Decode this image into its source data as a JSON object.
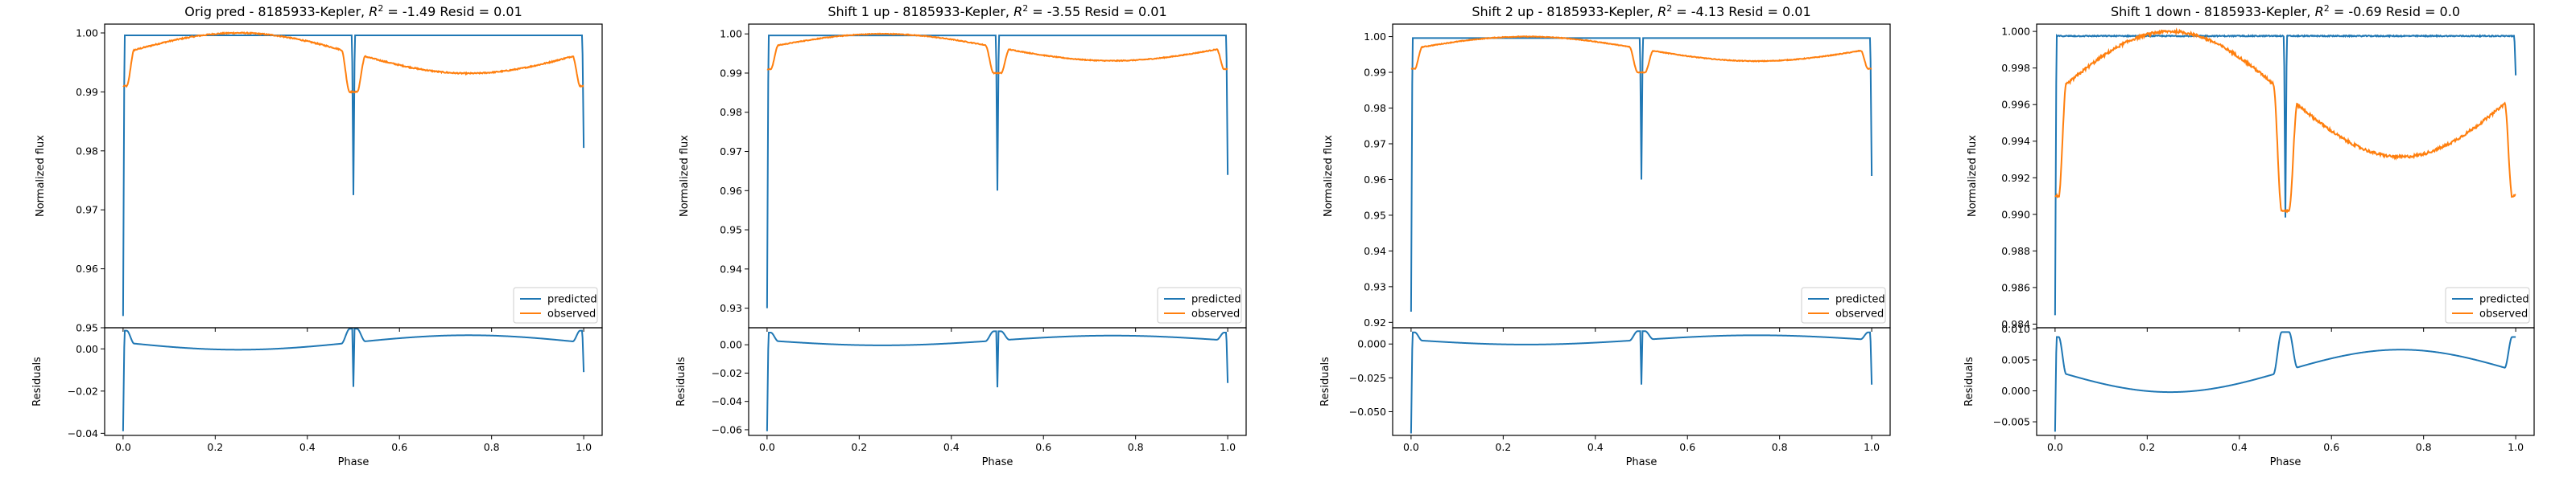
{
  "colors": {
    "predicted": "#1f77b4",
    "observed": "#ff7f0e"
  },
  "chart_data": [
    {
      "type": "line",
      "title_prefix": "Orig pred - 8185933-Kepler, ",
      "r2_value": "-1.49",
      "resid_text": "Resid = 0.01",
      "xlabel": "Phase",
      "ylabel_top": "Normalized flux",
      "ylabel_bottom": "Residuals",
      "xlim": [
        -0.04,
        1.04
      ],
      "xticks": [
        0.0,
        0.2,
        0.4,
        0.6,
        0.8,
        1.0
      ],
      "xtick_labels": [
        "0.0",
        "0.2",
        "0.4",
        "0.6",
        "0.8",
        "1.0"
      ],
      "ylim_top": [
        0.95,
        1.0015
      ],
      "yticks_top": [
        0.95,
        0.96,
        0.97,
        0.98,
        0.99,
        1.0
      ],
      "ytick_labels_top": [
        "0.95",
        "0.96",
        "0.97",
        "0.98",
        "0.99",
        "1.00"
      ],
      "ylim_bottom": [
        -0.041,
        0.01
      ],
      "yticks_bottom": [
        -0.04,
        -0.02,
        0.0
      ],
      "ytick_labels_bottom": [
        "−0.04",
        "−0.02",
        "0.00"
      ],
      "predicted": {
        "baseline": 0.9996,
        "edge_start": 0.952,
        "eclipse": 0.9725,
        "edge_end": 0.9805
      },
      "observed": {
        "edge": 0.991,
        "near_edge": 0.997,
        "max": 1.0,
        "eclipse": 0.99,
        "noise": 0.0002
      },
      "residual": {
        "edge": 0.0086,
        "near_edge": 0.0026,
        "min": -0.0004,
        "eclipse": 0.0095,
        "spike": -0.018,
        "start": -0.039,
        "end": -0.011
      },
      "legend": [
        "predicted",
        "observed"
      ],
      "legend_position": "lower-right"
    },
    {
      "type": "line",
      "title_prefix": "Shift 1 up - 8185933-Kepler, ",
      "r2_value": "-3.55",
      "resid_text": "Resid = 0.01",
      "xlabel": "Phase",
      "ylabel_top": "Normalized flux",
      "ylabel_bottom": "Residuals",
      "xlim": [
        -0.04,
        1.04
      ],
      "xticks": [
        0.0,
        0.2,
        0.4,
        0.6,
        0.8,
        1.0
      ],
      "xtick_labels": [
        "0.0",
        "0.2",
        "0.4",
        "0.6",
        "0.8",
        "1.0"
      ],
      "ylim_top": [
        0.925,
        1.0025
      ],
      "yticks_top": [
        0.93,
        0.94,
        0.95,
        0.96,
        0.97,
        0.98,
        0.99,
        1.0
      ],
      "ytick_labels_top": [
        "0.93",
        "0.94",
        "0.95",
        "0.96",
        "0.97",
        "0.98",
        "0.99",
        "1.00"
      ],
      "ylim_bottom": [
        -0.064,
        0.012
      ],
      "yticks_bottom": [
        -0.06,
        -0.04,
        -0.02,
        0.0
      ],
      "ytick_labels_bottom": [
        "−0.06",
        "−0.04",
        "−0.02",
        "0.00"
      ],
      "predicted": {
        "baseline": 0.9996,
        "edge_start": 0.93,
        "eclipse": 0.96,
        "edge_end": 0.964
      },
      "observed": {
        "edge": 0.991,
        "near_edge": 0.997,
        "max": 1.0,
        "eclipse": 0.99,
        "noise": 0.0002
      },
      "residual": {
        "edge": 0.0086,
        "near_edge": 0.0026,
        "min": -0.0004,
        "eclipse": 0.0095,
        "spike": -0.03,
        "start": -0.061,
        "end": -0.027
      },
      "legend": [
        "predicted",
        "observed"
      ],
      "legend_position": "lower-right"
    },
    {
      "type": "line",
      "title_prefix": "Shift 2 up - 8185933-Kepler, ",
      "r2_value": "-4.13",
      "resid_text": "Resid = 0.01",
      "xlabel": "Phase",
      "ylabel_top": "Normalized flux",
      "ylabel_bottom": "Residuals",
      "xlim": [
        -0.04,
        1.04
      ],
      "xticks": [
        0.0,
        0.2,
        0.4,
        0.6,
        0.8,
        1.0
      ],
      "xtick_labels": [
        "0.0",
        "0.2",
        "0.4",
        "0.6",
        "0.8",
        "1.0"
      ],
      "ylim_top": [
        0.9185,
        1.0035
      ],
      "yticks_top": [
        0.92,
        0.93,
        0.94,
        0.95,
        0.96,
        0.97,
        0.98,
        0.99,
        1.0
      ],
      "ytick_labels_top": [
        "0.92",
        "0.93",
        "0.94",
        "0.95",
        "0.96",
        "0.97",
        "0.98",
        "0.99",
        "1.00"
      ],
      "ylim_bottom": [
        -0.0675,
        0.012
      ],
      "yticks_bottom": [
        -0.05,
        -0.025,
        0.0
      ],
      "ytick_labels_bottom": [
        "−0.050",
        "−0.025",
        "0.000"
      ],
      "predicted": {
        "baseline": 0.9996,
        "edge_start": 0.923,
        "eclipse": 0.96,
        "edge_end": 0.961
      },
      "observed": {
        "edge": 0.991,
        "near_edge": 0.997,
        "max": 1.0,
        "eclipse": 0.99,
        "noise": 0.0002
      },
      "residual": {
        "edge": 0.0086,
        "near_edge": 0.0026,
        "min": -0.0004,
        "eclipse": 0.0095,
        "spike": -0.03,
        "start": -0.066,
        "end": -0.03
      },
      "legend": [
        "predicted",
        "observed"
      ],
      "legend_position": "lower-right"
    },
    {
      "type": "line",
      "title_prefix": "Shift 1 down - 8185933-Kepler, ",
      "r2_value": "-0.69",
      "resid_text": "Resid = 0.0",
      "xlabel": "Phase",
      "ylabel_top": "Normalized flux",
      "ylabel_bottom": "Residuals",
      "xlim": [
        -0.04,
        1.04
      ],
      "xticks": [
        0.0,
        0.2,
        0.4,
        0.6,
        0.8,
        1.0
      ],
      "xtick_labels": [
        "0.0",
        "0.2",
        "0.4",
        "0.6",
        "0.8",
        "1.0"
      ],
      "ylim_top": [
        0.9838,
        1.0004
      ],
      "yticks_top": [
        0.984,
        0.986,
        0.988,
        0.99,
        0.992,
        0.994,
        0.996,
        0.998,
        1.0
      ],
      "ytick_labels_top": [
        "0.984",
        "0.986",
        "0.988",
        "0.990",
        "0.992",
        "0.994",
        "0.996",
        "0.998",
        "1.000"
      ],
      "ylim_bottom": [
        -0.0072,
        0.0102
      ],
      "yticks_bottom": [
        -0.005,
        0.0,
        0.005,
        0.01
      ],
      "ytick_labels_bottom": [
        "−0.005",
        "0.000",
        "0.005",
        "0.010"
      ],
      "predicted": {
        "baseline": 0.99975,
        "edge_start": 0.9845,
        "eclipse": 0.9898,
        "edge_end": 0.9976
      },
      "observed": {
        "edge": 0.991,
        "near_edge": 0.997,
        "max": 1.0,
        "eclipse": 0.9902,
        "noise": 0.00015
      },
      "residual": {
        "edge": 0.0087,
        "near_edge": 0.0028,
        "min": -0.0002,
        "eclipse": 0.0095,
        "spike": 0.0095,
        "start": -0.0066,
        "end": 0.0087
      },
      "legend": [
        "predicted",
        "observed"
      ],
      "legend_position": "lower-right"
    }
  ]
}
